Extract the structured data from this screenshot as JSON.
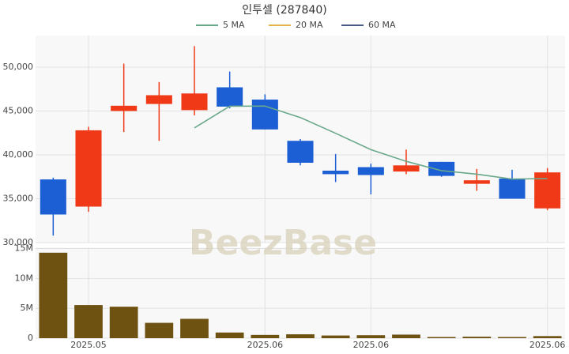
{
  "chart_data": {
    "type": "candlestick",
    "title": "인투셀 (287840)",
    "watermark": "BeezBase",
    "categories": [
      null,
      "2025.05",
      null,
      null,
      null,
      null,
      "2025.06",
      null,
      null,
      "2025.06",
      null,
      null,
      null,
      null,
      "2025.06"
    ],
    "open": [
      37200,
      34100,
      45000,
      45800,
      45100,
      47700,
      46300,
      41600,
      38200,
      38600,
      38100,
      39200,
      36700,
      37300,
      33900
    ],
    "high": [
      37400,
      43200,
      50400,
      48300,
      52400,
      49500,
      46900,
      41800,
      40100,
      39000,
      40600,
      39200,
      38400,
      38300,
      38500
    ],
    "low": [
      30800,
      33500,
      42600,
      41600,
      44500,
      45300,
      42900,
      38800,
      36900,
      35500,
      37800,
      37500,
      35900,
      35000,
      33700
    ],
    "close": [
      33200,
      42800,
      45600,
      46800,
      47000,
      45500,
      42900,
      39100,
      37800,
      37700,
      38800,
      37600,
      37100,
      35000,
      38000
    ],
    "up_color": "#f03a17",
    "down_color": "#1c5fd4",
    "series": [
      {
        "name": "5 MA",
        "color": "#6aa88a",
        "values": [
          null,
          null,
          null,
          null,
          43080,
          45540,
          45560,
          44260,
          42460,
          40600,
          39260,
          38200,
          37800,
          37240,
          37300
        ]
      },
      {
        "name": "20 MA",
        "color": "#e3b64a",
        "values": [
          null,
          null,
          null,
          null,
          null,
          null,
          null,
          null,
          null,
          null,
          null,
          null,
          null,
          null,
          null
        ]
      },
      {
        "name": "60 MA",
        "color": "#4a5a8a",
        "values": [
          null,
          null,
          null,
          null,
          null,
          null,
          null,
          null,
          null,
          null,
          null,
          null,
          null,
          null,
          null
        ]
      }
    ],
    "ylim": [
      30000,
      53600
    ],
    "yticks": [
      {
        "value": 30000,
        "label": "30,000"
      },
      {
        "value": 35000,
        "label": "35,000"
      },
      {
        "value": 40000,
        "label": "40,000"
      },
      {
        "value": 45000,
        "label": "45,000"
      },
      {
        "value": 50000,
        "label": "50,000"
      }
    ],
    "grid": true,
    "volume": {
      "color": "#6e5212",
      "values": [
        14300000,
        5540000,
        5270000,
        2570000,
        3240000,
        950000,
        550000,
        650000,
        450000,
        500000,
        600000,
        200000,
        250000,
        200000,
        350000
      ],
      "ylim": [
        0,
        15200000
      ],
      "yticks": [
        {
          "value": 0,
          "label": "0"
        },
        {
          "value": 5000000,
          "label": "5M"
        },
        {
          "value": 10000000,
          "label": "10M"
        },
        {
          "value": 15000000,
          "label": "15M"
        }
      ]
    }
  }
}
